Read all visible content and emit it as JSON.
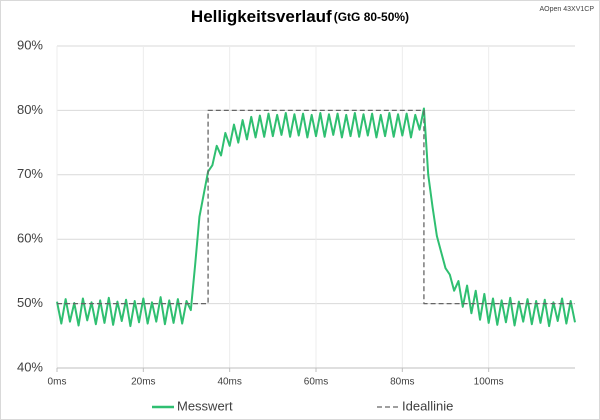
{
  "chart_data": {
    "type": "line",
    "title": "Helligkeitsverlauf",
    "subtitle": "(GtG 80-50%)",
    "annotation": "AOpen 43XV1CP",
    "xlim": [
      0,
      120
    ],
    "xticks": [
      {
        "value": 0,
        "label": "0ms"
      },
      {
        "value": 20,
        "label": "20ms"
      },
      {
        "value": 40,
        "label": "40ms"
      },
      {
        "value": 60,
        "label": "60ms"
      },
      {
        "value": 80,
        "label": "80ms"
      },
      {
        "value": 100,
        "label": "100ms"
      }
    ],
    "ylim": [
      40,
      90
    ],
    "yticks": [
      {
        "value": 40,
        "label": "40%"
      },
      {
        "value": 50,
        "label": "50%"
      },
      {
        "value": 60,
        "label": "60%"
      },
      {
        "value": 70,
        "label": "70%"
      },
      {
        "value": 80,
        "label": "80%"
      },
      {
        "value": 90,
        "label": "90%"
      }
    ],
    "grid": true,
    "legend": "bottom",
    "series": [
      {
        "name": "Messwert",
        "color": "#2fbf71",
        "line_style": "solid",
        "x": [
          0,
          1,
          2,
          3,
          4,
          5,
          6,
          7,
          8,
          9,
          10,
          11,
          12,
          13,
          14,
          15,
          16,
          17,
          18,
          19,
          20,
          21,
          22,
          23,
          24,
          25,
          26,
          27,
          28,
          29,
          30,
          31,
          32,
          33,
          34,
          35,
          36,
          37,
          38,
          39,
          40,
          41,
          42,
          43,
          44,
          45,
          46,
          47,
          48,
          49,
          50,
          51,
          52,
          53,
          54,
          55,
          56,
          57,
          58,
          59,
          60,
          61,
          62,
          63,
          64,
          65,
          66,
          67,
          68,
          69,
          70,
          71,
          72,
          73,
          74,
          75,
          76,
          77,
          78,
          79,
          80,
          81,
          82,
          83,
          84,
          85,
          86,
          87,
          88,
          89,
          90,
          91,
          92,
          93,
          94,
          95,
          96,
          97,
          98,
          99,
          100,
          101,
          102,
          103,
          104,
          105,
          106,
          107,
          108,
          109,
          110,
          111,
          112,
          113,
          114,
          115,
          116,
          117,
          118,
          119,
          120
        ],
        "values": [
          50.3,
          46.9,
          50.7,
          47.2,
          50.1,
          46.6,
          50.8,
          47.4,
          50.2,
          46.8,
          50.5,
          47.0,
          50.9,
          46.7,
          50.3,
          47.3,
          50.6,
          46.5,
          50.4,
          47.1,
          50.8,
          46.9,
          50.2,
          47.2,
          51.0,
          46.8,
          50.5,
          47.0,
          50.7,
          46.9,
          50.4,
          49.0,
          56.0,
          63.5,
          67.0,
          70.5,
          71.5,
          74.5,
          73.0,
          76.5,
          74.5,
          77.8,
          75.0,
          78.5,
          75.5,
          79.0,
          75.8,
          79.2,
          75.9,
          79.5,
          76.0,
          79.3,
          76.2,
          79.6,
          75.9,
          79.4,
          76.1,
          79.5,
          75.8,
          79.3,
          76.0,
          79.6,
          75.9,
          79.4,
          76.2,
          79.5,
          75.8,
          79.3,
          76.0,
          79.6,
          75.9,
          79.4,
          76.1,
          79.5,
          75.8,
          79.3,
          76.0,
          79.6,
          75.9,
          79.4,
          76.1,
          79.5,
          75.8,
          79.3,
          77.0,
          80.3,
          70.0,
          65.0,
          60.5,
          58.0,
          55.5,
          54.5,
          52.0,
          53.5,
          49.5,
          52.8,
          48.5,
          52.0,
          47.5,
          51.5,
          47.0,
          50.8,
          46.7,
          50.5,
          47.1,
          50.9,
          46.6,
          50.3,
          47.2,
          50.7,
          46.8,
          50.4,
          47.0,
          50.6,
          46.5,
          50.2,
          47.3,
          50.8,
          46.9,
          50.4,
          47.1
        ]
      },
      {
        "name": "Ideallinie",
        "color": "#666666",
        "line_style": "dashed",
        "x": [
          0,
          35,
          35,
          85,
          85,
          120
        ],
        "values": [
          50,
          50,
          80,
          80,
          50,
          50
        ]
      }
    ]
  }
}
